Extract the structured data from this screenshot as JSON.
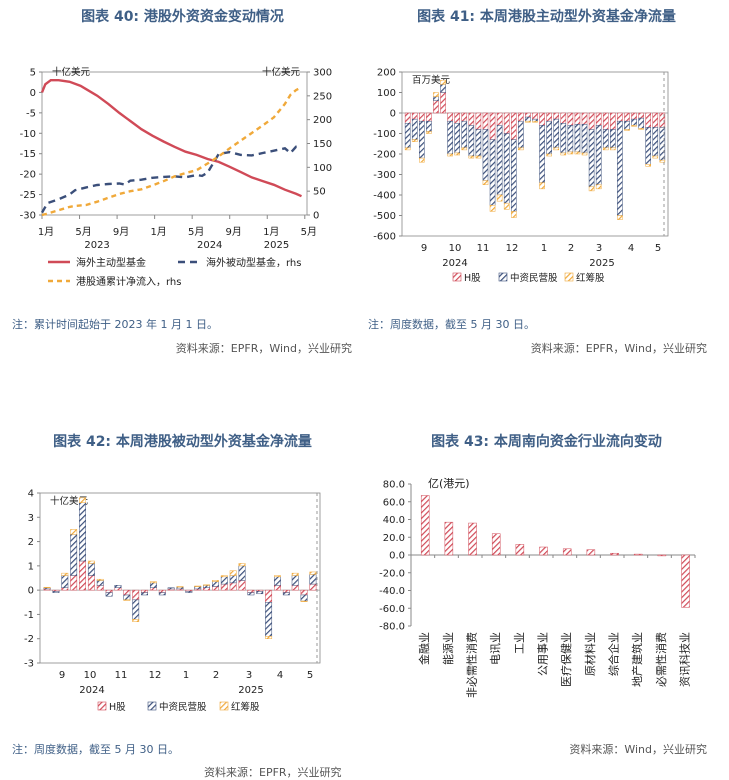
{
  "titles": {
    "c40": "图表 40: 港股外资资金变动情况",
    "c41": "图表 41: 本周港股主动型外资基金净流量",
    "c42": "图表 42: 本周港股被动型外资基金净流量",
    "c43": "图表 43: 本周南向资金行业流向变动"
  },
  "notes": {
    "c40": "注：累计时间起始于 2023 年 1 月 1 日。",
    "c41": "注：周度数据，截至 5 月 30 日。",
    "c42": "注：周度数据，截至 5 月 30 日。"
  },
  "sources": {
    "c40": "资料来源：EPFR，Wind，兴业研究",
    "c41": "资料来源：EPFR，Wind，兴业研究",
    "c42": "资料来源：EPFR，兴业研究",
    "c43": "资料来源：Wind，兴业研究"
  },
  "colors": {
    "title": "#3f5f86",
    "red": "#d04a57",
    "navy": "#3b4f7a",
    "orange": "#f0a93a"
  },
  "chart_data": [
    {
      "id": "c40",
      "type": "line",
      "unit_left": "十亿美元",
      "unit_right": "十亿美元",
      "x_ticks": [
        "1月",
        "5月",
        "9月",
        "1月",
        "5月",
        "9月",
        "1月",
        "5月"
      ],
      "year_labels": [
        "2023",
        "2024",
        "2025"
      ],
      "ylim_left": [
        -30,
        5
      ],
      "yticks_left": [
        "5",
        "0",
        "-5",
        "-10",
        "-15",
        "-20",
        "-25",
        "-30"
      ],
      "ylim_right": [
        0,
        300
      ],
      "yticks_right": [
        "300",
        "250",
        "200",
        "150",
        "100",
        "50",
        "0"
      ],
      "legend": [
        "海外主动型基金",
        "海外被动型基金，rhs",
        "港股通累计净流入，rhs"
      ],
      "series": [
        {
          "name": "海外主动型基金",
          "axis": "left",
          "values": [
            [
              0,
              0
            ],
            [
              0.3,
              2
            ],
            [
              0.8,
              3
            ],
            [
              1.5,
              3
            ],
            [
              2.5,
              2.6
            ],
            [
              3.5,
              1.6
            ],
            [
              4,
              0.8
            ],
            [
              5,
              -0.8
            ],
            [
              6,
              -2.8
            ],
            [
              7,
              -5
            ],
            [
              8,
              -7
            ],
            [
              9,
              -9
            ],
            [
              10,
              -10.6
            ],
            [
              11,
              -12
            ],
            [
              12,
              -13.3
            ],
            [
              13,
              -14.5
            ],
            [
              14,
              -15.3
            ],
            [
              15,
              -16.3
            ],
            [
              16,
              -17
            ],
            [
              17,
              -18.2
            ],
            [
              18,
              -19.5
            ],
            [
              19,
              -20.8
            ],
            [
              20,
              -21.7
            ],
            [
              21,
              -22.6
            ],
            [
              22,
              -23.8
            ],
            [
              23,
              -24.8
            ],
            [
              23.5,
              -25.4
            ]
          ]
        },
        {
          "name": "海外被动型基金，rhs",
          "axis": "right",
          "values": [
            [
              0,
              5
            ],
            [
              0.5,
              25
            ],
            [
              1.5,
              33
            ],
            [
              2.5,
              43
            ],
            [
              3,
              52
            ],
            [
              4,
              58
            ],
            [
              5,
              63
            ],
            [
              6,
              65
            ],
            [
              7,
              66
            ],
            [
              7.5,
              64
            ],
            [
              8,
              72
            ],
            [
              9,
              74
            ],
            [
              10,
              78
            ],
            [
              11,
              80
            ],
            [
              12,
              81
            ],
            [
              13,
              79
            ],
            [
              14,
              84
            ],
            [
              14.5,
              82
            ],
            [
              15,
              89
            ],
            [
              16,
              128
            ],
            [
              17,
              132
            ],
            [
              18,
              126
            ],
            [
              19,
              125
            ],
            [
              20,
              130
            ],
            [
              21,
              135
            ],
            [
              22,
              140
            ],
            [
              22.5,
              130
            ],
            [
              23,
              143
            ],
            [
              23.5,
              142
            ]
          ]
        },
        {
          "name": "港股通累计净流入，rhs",
          "axis": "right",
          "values": [
            [
              0,
              0
            ],
            [
              0.5,
              3
            ],
            [
              1.5,
              10
            ],
            [
              2.5,
              17
            ],
            [
              3,
              19
            ],
            [
              4,
              21
            ],
            [
              5,
              28
            ],
            [
              6,
              36
            ],
            [
              7,
              44
            ],
            [
              8,
              50
            ],
            [
              9,
              54
            ],
            [
              10,
              62
            ],
            [
              11,
              71
            ],
            [
              12,
              81
            ],
            [
              13,
              88
            ],
            [
              14,
              94
            ],
            [
              15,
              108
            ],
            [
              16,
              123
            ],
            [
              17,
              140
            ],
            [
              18,
              156
            ],
            [
              19,
              172
            ],
            [
              20,
              188
            ],
            [
              21,
              205
            ],
            [
              22,
              233
            ],
            [
              22.5,
              252
            ],
            [
              23,
              262
            ],
            [
              23.5,
              268
            ]
          ]
        }
      ]
    },
    {
      "id": "c41",
      "type": "bar",
      "unit": "百万美元",
      "ylim": [
        -600,
        200
      ],
      "yticks": [
        "200",
        "100",
        "0",
        "-100",
        "-200",
        "-300",
        "-400",
        "-500",
        "-600"
      ],
      "month_labels": [
        "9",
        "10",
        "11",
        "12",
        "1",
        "2",
        "3",
        "4",
        "5"
      ],
      "year_labels": [
        "2024",
        "2025"
      ],
      "legend": [
        "H股",
        "中资民营股",
        "红筹股"
      ],
      "bars": [
        [
          -50,
          -120,
          -10
        ],
        [
          -30,
          -100,
          -10
        ],
        [
          -40,
          -180,
          -20
        ],
        [
          -40,
          -50,
          -10
        ],
        [
          60,
          20,
          20
        ],
        [
          100,
          40,
          20
        ],
        [
          -40,
          -160,
          -10
        ],
        [
          -50,
          -145,
          -10
        ],
        [
          -40,
          -130,
          -10
        ],
        [
          -60,
          -150,
          -10
        ],
        [
          -80,
          -130,
          -10
        ],
        [
          -80,
          -250,
          -20
        ],
        [
          -130,
          -320,
          -30
        ],
        [
          -60,
          -340,
          -30
        ],
        [
          -100,
          -340,
          -30
        ],
        [
          -130,
          -350,
          -30
        ],
        [
          -40,
          -130,
          -10
        ],
        [
          -20,
          -20,
          -5
        ],
        [
          -30,
          -10,
          -5
        ],
        [
          -60,
          -280,
          -30
        ],
        [
          -40,
          -160,
          -10
        ],
        [
          -30,
          -140,
          -10
        ],
        [
          -50,
          -145,
          -10
        ],
        [
          -60,
          -130,
          -10
        ],
        [
          -55,
          -135,
          -10
        ],
        [
          -55,
          -140,
          -10
        ],
        [
          -80,
          -280,
          -20
        ],
        [
          -60,
          -290,
          -20
        ],
        [
          -80,
          -90,
          -10
        ],
        [
          -80,
          -90,
          -10
        ],
        [
          -40,
          -460,
          -20
        ],
        [
          -40,
          -40,
          -5
        ],
        [
          -30,
          -30,
          -5
        ],
        [
          -25,
          -50,
          -5
        ],
        [
          -70,
          -180,
          -10
        ],
        [
          -70,
          -140,
          -10
        ],
        [
          -70,
          -160,
          -10
        ]
      ]
    },
    {
      "id": "c42",
      "type": "bar",
      "unit": "十亿美元",
      "ylim": [
        -3,
        4
      ],
      "yticks": [
        "4",
        "3",
        "2",
        "1",
        "0",
        "-1",
        "-2",
        "-3"
      ],
      "month_labels": [
        "9",
        "10",
        "11",
        "12",
        "1",
        "2",
        "3",
        "4",
        "5"
      ],
      "year_labels": [
        "2024",
        "2025"
      ],
      "legend": [
        "H股",
        "中资民营股",
        "红筹股"
      ],
      "bars": [
        [
          0.05,
          0.05,
          0.02
        ],
        [
          -0.05,
          -0.05,
          0
        ],
        [
          0.1,
          0.5,
          0.1
        ],
        [
          0.6,
          1.7,
          0.2
        ],
        [
          1.2,
          2.4,
          0.2
        ],
        [
          0.6,
          0.5,
          0.1
        ],
        [
          0.2,
          0.2,
          0.05
        ],
        [
          -0.1,
          -0.15,
          0
        ],
        [
          0.1,
          0.1,
          0
        ],
        [
          -0.2,
          -0.2,
          -0.02
        ],
        [
          -0.4,
          -0.8,
          -0.1
        ],
        [
          -0.1,
          -0.1,
          0
        ],
        [
          0.1,
          0.2,
          0.05
        ],
        [
          -0.1,
          -0.1,
          0
        ],
        [
          0.05,
          0.05,
          0
        ],
        [
          0.05,
          0.08,
          0.02
        ],
        [
          -0.05,
          -0.05,
          0
        ],
        [
          0.05,
          0.1,
          0.02
        ],
        [
          0.1,
          0.1,
          0.02
        ],
        [
          0.15,
          0.2,
          0.05
        ],
        [
          0.25,
          0.3,
          0.05
        ],
        [
          0.3,
          0.3,
          0.2
        ],
        [
          0.4,
          0.6,
          0.1
        ],
        [
          -0.1,
          -0.1,
          0
        ],
        [
          -0.05,
          -0.1,
          0
        ],
        [
          -0.5,
          -1.4,
          -0.1
        ],
        [
          0.2,
          0.35,
          0.05
        ],
        [
          -0.1,
          -0.1,
          0
        ],
        [
          0.2,
          0.4,
          0.1
        ],
        [
          -0.2,
          -0.25,
          -0.02
        ],
        [
          0.25,
          0.4,
          0.1
        ]
      ]
    },
    {
      "id": "c43",
      "type": "bar",
      "unit": "亿(港元)",
      "ylim": [
        -80,
        80
      ],
      "yticks": [
        "80.0",
        "60.0",
        "40.0",
        "20.0",
        "0.0",
        "-20.0",
        "-40.0",
        "-60.0",
        "-80.0"
      ],
      "categories": [
        "金融业",
        "能源业",
        "非必需性消费",
        "电讯业",
        "工业",
        "公用事业",
        "医疗保健业",
        "原材料业",
        "综合企业",
        "地产建筑业",
        "必需性消费",
        "资讯科技业"
      ],
      "values": [
        67,
        37,
        36,
        24,
        12,
        9,
        7,
        6,
        2,
        1,
        -1,
        -59
      ]
    }
  ]
}
